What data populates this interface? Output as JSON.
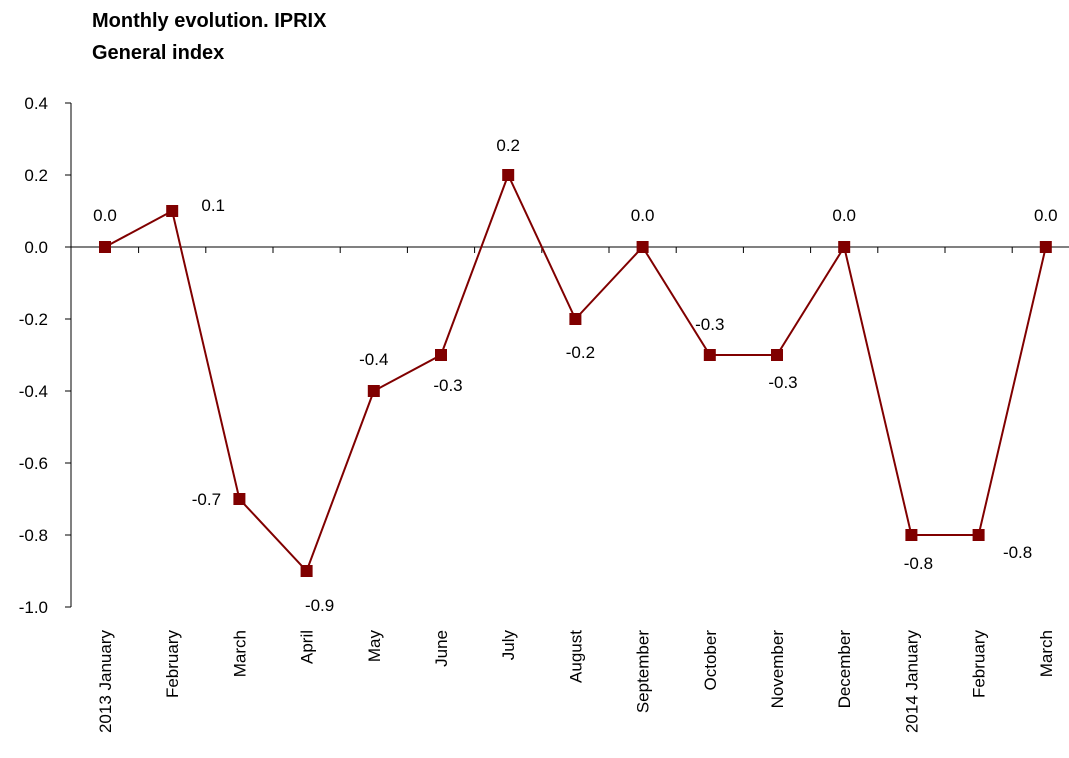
{
  "chart_data": {
    "type": "line",
    "title": "Monthly evolution. IPRIX",
    "subtitle": "General index",
    "categories": [
      "2013 January",
      "February",
      "March",
      "April",
      "May",
      "June",
      "July",
      "August",
      "September",
      "October",
      "November",
      "December",
      "2014 January",
      "February",
      "March"
    ],
    "series": [
      {
        "name": "General index",
        "color": "#800000",
        "values": [
          0.0,
          0.1,
          -0.7,
          -0.9,
          -0.4,
          -0.3,
          0.2,
          -0.2,
          0.0,
          -0.3,
          -0.3,
          0.0,
          -0.8,
          -0.8,
          0.0
        ],
        "value_labels": [
          "0.0",
          "0.1",
          "-0.7",
          "-0.9",
          "-0.4",
          "-0.3",
          "0.2",
          "-0.2",
          "0.0",
          "-0.3",
          "-0.3",
          "0.0",
          "-0.8",
          "-0.8",
          "0.0"
        ]
      }
    ],
    "ylim": [
      -1.0,
      0.4
    ],
    "yticks": [
      {
        "value": -1.0,
        "label": "-1.0"
      },
      -0.8,
      -0.6,
      -0.4,
      -0.2,
      {
        "value": 0,
        "label": "0.0"
      },
      0.2,
      0.4
    ],
    "legend": false,
    "grid": false
  }
}
